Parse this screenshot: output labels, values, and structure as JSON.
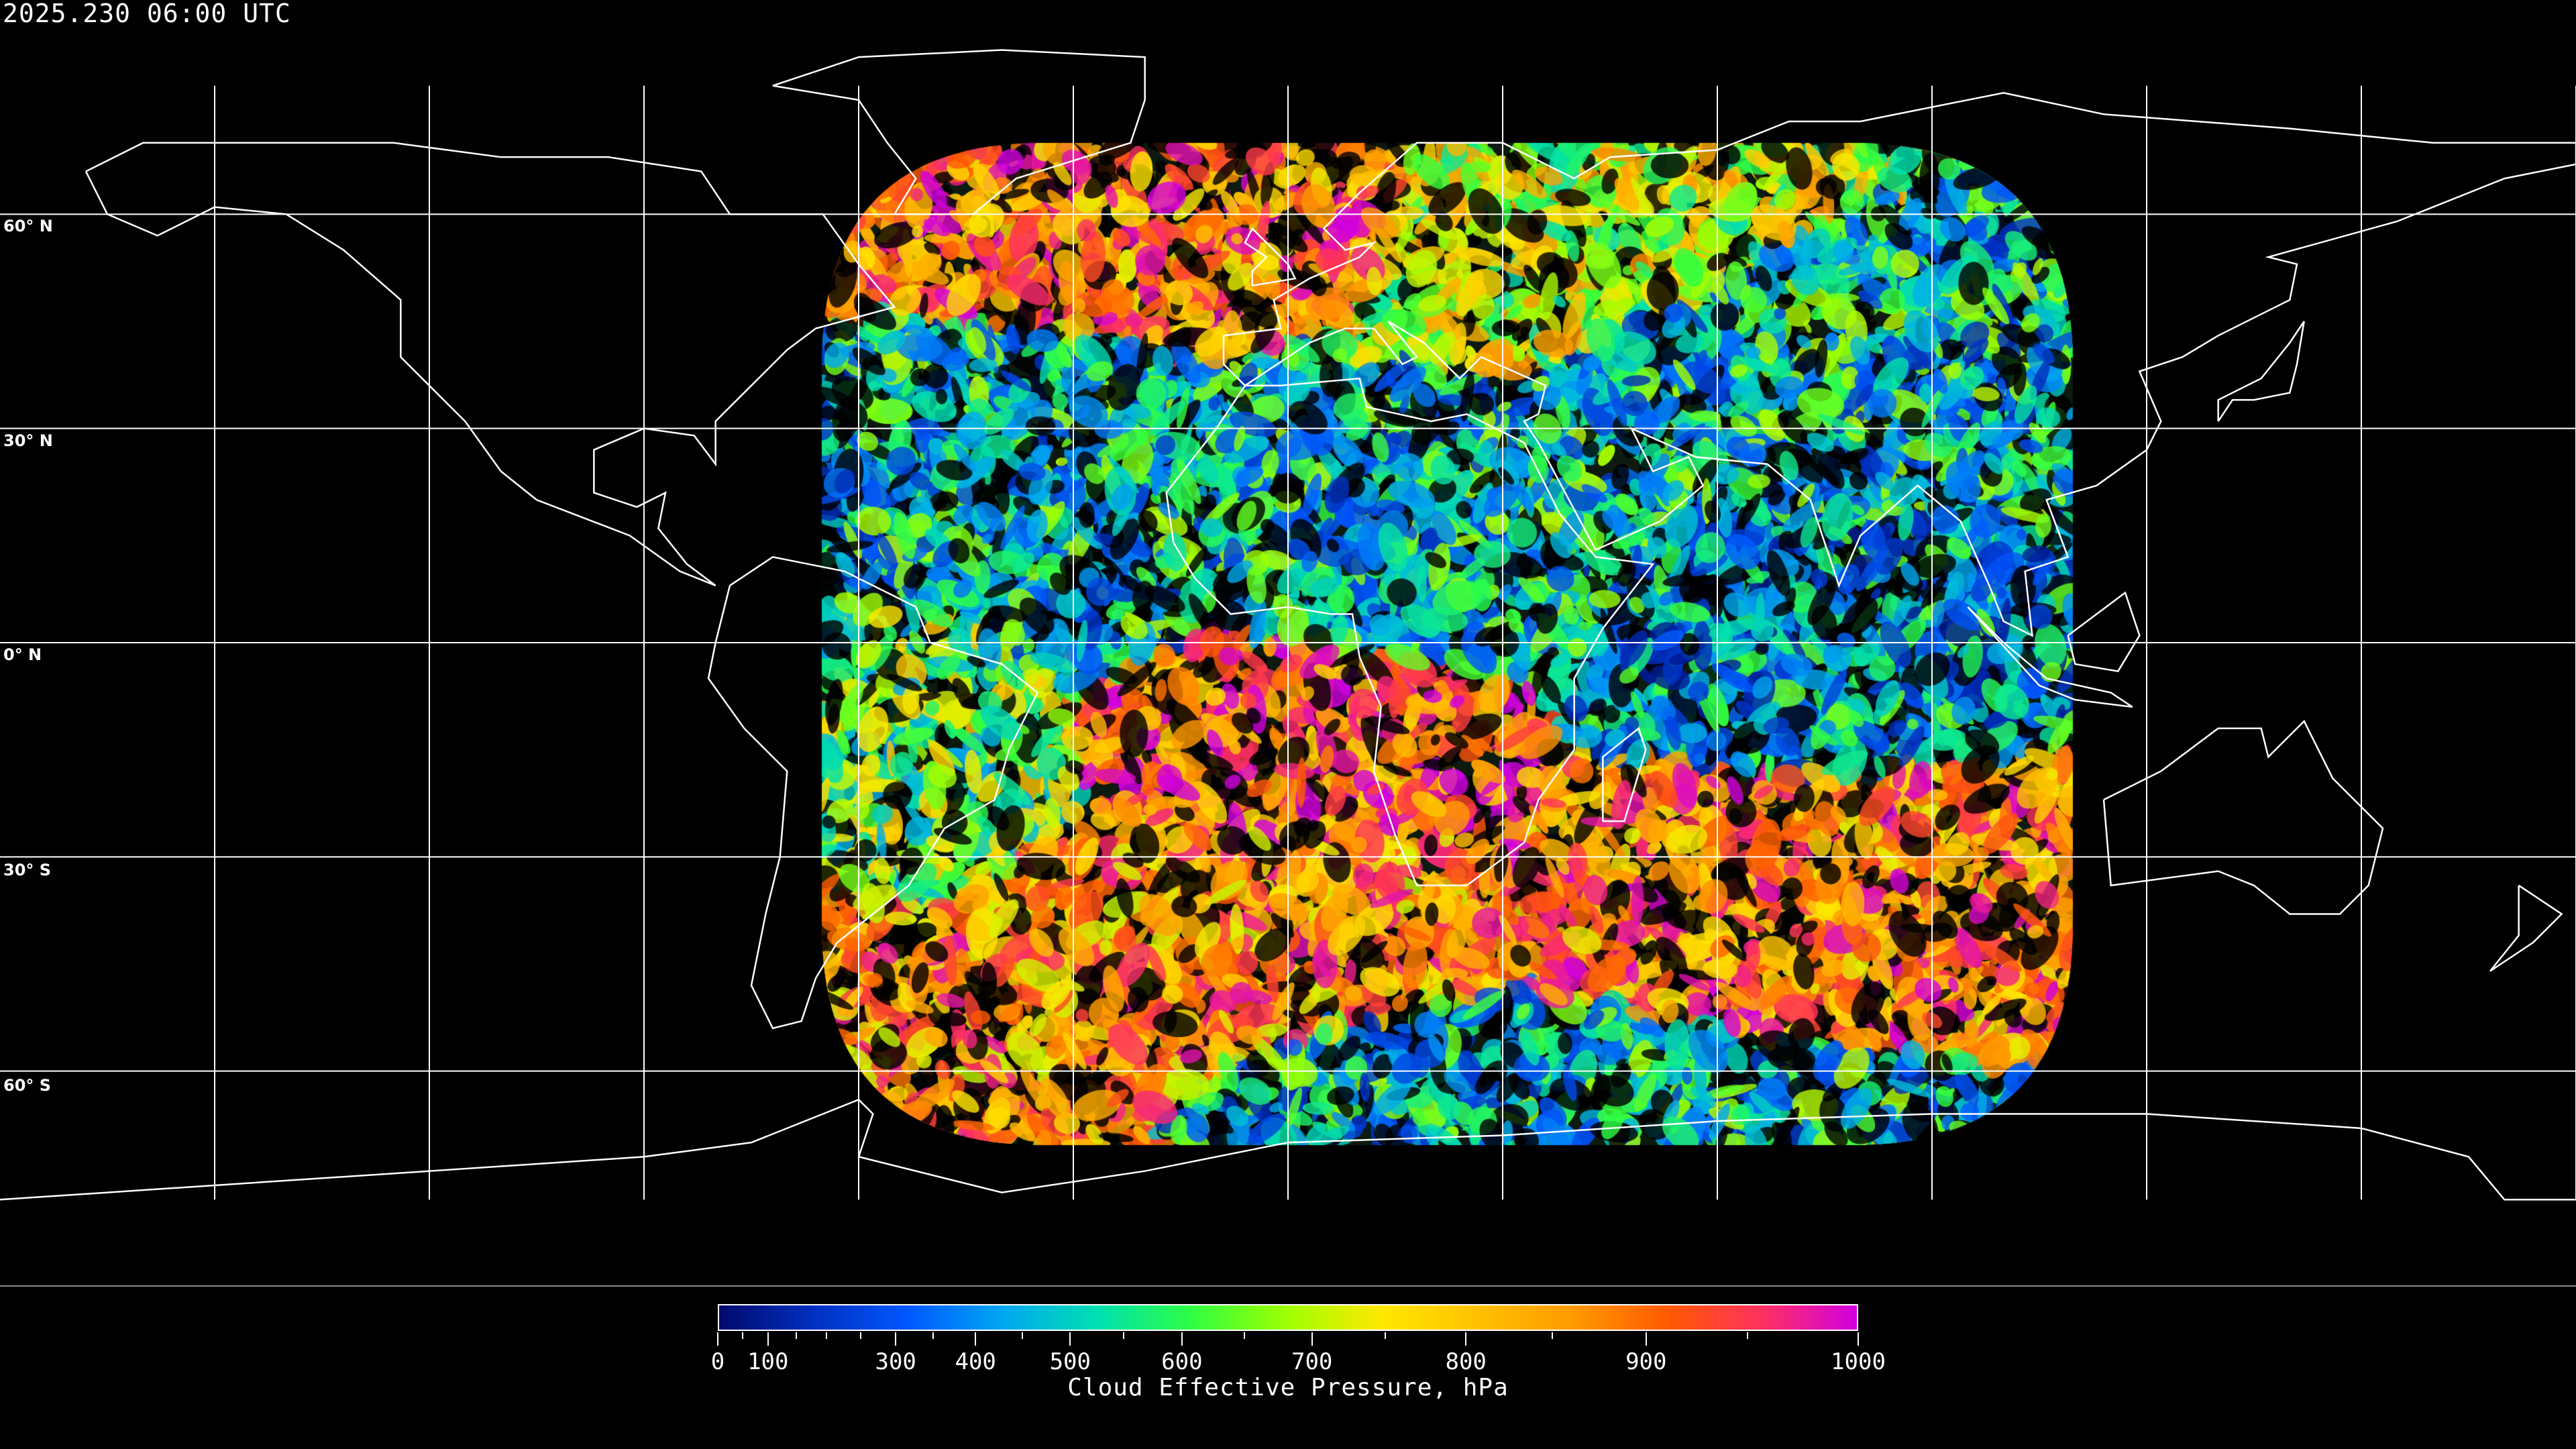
{
  "title": "2025.230 06:00 UTC",
  "map": {
    "projection": "equirectangular",
    "gridline_color": "#ffffff",
    "coastline_color": "#ffffff",
    "background": "#000000",
    "lat_labels": [
      "60° N",
      "30° N",
      "0° N",
      "30° S",
      "60° S"
    ]
  },
  "colorbar": {
    "title": "Cloud Effective Pressure, hPa",
    "range": [
      0,
      1000
    ],
    "tick_labels": [
      "0",
      "100",
      "300",
      "400",
      "500",
      "600",
      "700",
      "800",
      "900",
      "1000"
    ],
    "minor_ticks": [
      50,
      150,
      200,
      250,
      350,
      450,
      550,
      650,
      750,
      850,
      950
    ],
    "colors": [
      "#000a6e",
      "#0030c0",
      "#0058ff",
      "#00a8f0",
      "#00e0b0",
      "#30ff40",
      "#a0ff00",
      "#ffe800",
      "#ffc000",
      "#ff9a00",
      "#ff5a00",
      "#ff3060",
      "#d000e0"
    ]
  }
}
